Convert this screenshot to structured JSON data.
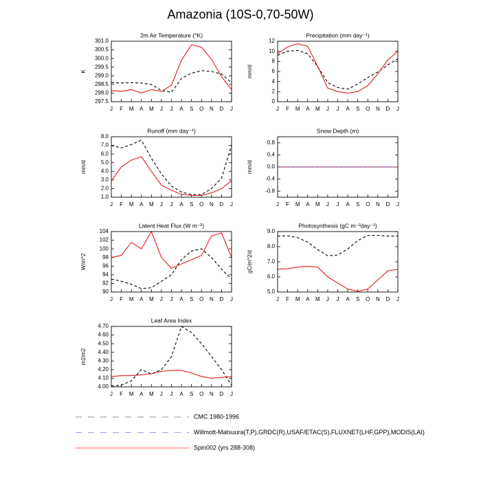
{
  "title": "Amazonia (10S-0,70-50W)",
  "legend": [
    {
      "label": "CMC 1980-1996",
      "color": "#8c8c8c",
      "dashed": true
    },
    {
      "label": "Willmott-Matsuura(T,P),GRDC(R),USAF/ETAC(S),FLUXNET(LHF,GPP),MODIS(LAI)",
      "color": "#9b9bf0",
      "dashed": true
    },
    {
      "label": "Spin002 (yrs 288-308)",
      "color": "#ff6060",
      "dashed": false
    }
  ],
  "chart_data": [
    {
      "type": "line",
      "title": "2m Air Temperature (°K)",
      "y_label": "K",
      "categories": [
        "J",
        "F",
        "M",
        "A",
        "M",
        "J",
        "J",
        "A",
        "S",
        "O",
        "N",
        "D",
        "J"
      ],
      "ylim": [
        297.5,
        301.0
      ],
      "yticks": [
        297.5,
        {
          "value": 298,
          "label": "298.0"
        },
        298.5,
        {
          "value": 299,
          "label": "299.0"
        },
        299.5,
        {
          "value": 300,
          "label": "300.0"
        },
        300.5,
        {
          "value": 301,
          "label": "301.0"
        }
      ],
      "series": [
        {
          "color": "#000000",
          "dashed": true,
          "values": [
            298.6,
            298.58,
            298.6,
            298.58,
            298.5,
            298.15,
            298.05,
            298.85,
            299.15,
            299.3,
            299.25,
            299.1,
            298.6
          ]
        },
        {
          "color": "#e41a1c",
          "dashed": false,
          "values": [
            298.15,
            298.1,
            298.2,
            298.0,
            298.2,
            298.1,
            298.45,
            299.9,
            300.8,
            300.65,
            299.95,
            298.95,
            298.2
          ]
        }
      ]
    },
    {
      "type": "line",
      "title": "Precipitation (mm day⁻¹)",
      "y_label": "mm/d",
      "categories": [
        "J",
        "F",
        "M",
        "A",
        "M",
        "J",
        "J",
        "A",
        "S",
        "O",
        "N",
        "D",
        "J"
      ],
      "ylim": [
        0,
        12
      ],
      "yticks": [
        0,
        2,
        4,
        6,
        8,
        10,
        12
      ],
      "series": [
        {
          "color": "#000000",
          "dashed": true,
          "values": [
            9.2,
            10.0,
            10.2,
            9.5,
            7.0,
            3.8,
            2.8,
            2.5,
            3.5,
            4.8,
            5.9,
            7.3,
            8.5
          ]
        },
        {
          "color": "#e41a1c",
          "dashed": false,
          "values": [
            9.5,
            10.9,
            11.5,
            11.0,
            7.0,
            2.7,
            2.0,
            1.7,
            2.0,
            3.2,
            5.5,
            8.3,
            10.0
          ]
        }
      ]
    },
    {
      "type": "line",
      "title": "Runoff (mm day⁻¹)",
      "y_label": "mm/d",
      "categories": [
        "J",
        "F",
        "M",
        "A",
        "M",
        "J",
        "J",
        "A",
        "S",
        "O",
        "N",
        "D",
        "J"
      ],
      "ylim": [
        1,
        8
      ],
      "yticks": [
        {
          "value": 1,
          "label": "1.0"
        },
        {
          "value": 2,
          "label": "2.0"
        },
        {
          "value": 3,
          "label": "3.0"
        },
        {
          "value": 4,
          "label": "4.0"
        },
        {
          "value": 5,
          "label": "5.0"
        },
        {
          "value": 6,
          "label": "6.0"
        },
        {
          "value": 7,
          "label": "7.0"
        },
        {
          "value": 8,
          "label": "8.0"
        }
      ],
      "series": [
        {
          "color": "#000000",
          "dashed": true,
          "values": [
            7.0,
            6.7,
            7.1,
            7.6,
            5.5,
            3.7,
            2.3,
            1.6,
            1.3,
            1.3,
            2.0,
            3.2,
            7.0
          ]
        },
        {
          "color": "#e41a1c",
          "dashed": false,
          "values": [
            2.9,
            4.5,
            5.3,
            5.7,
            4.0,
            2.4,
            1.8,
            1.35,
            1.2,
            1.2,
            1.5,
            2.0,
            2.9
          ]
        }
      ]
    },
    {
      "type": "line",
      "title": "Snow Depth (m)",
      "y_label": "mm/d",
      "categories": [
        "J",
        "F",
        "M",
        "A",
        "M",
        "J",
        "J",
        "A",
        "S",
        "O",
        "N",
        "D",
        "J"
      ],
      "ylim": [
        -1,
        1
      ],
      "yticks": [
        -0.8,
        -0.4,
        {
          "value": 0,
          "label": "0.0"
        },
        0.4,
        0.8
      ],
      "series": [
        {
          "color": "#e41a1c",
          "dashed": false,
          "values": [
            0,
            0,
            0,
            0,
            0,
            0,
            0,
            0,
            0,
            0,
            0,
            0,
            0
          ]
        },
        {
          "color": "#3030a0",
          "dashed": true,
          "values": [
            0,
            0,
            0,
            0,
            0,
            0,
            0,
            0,
            0,
            0,
            0,
            0,
            0
          ]
        }
      ]
    },
    {
      "type": "line",
      "title": "Latent Heat Flux (W m⁻²)",
      "y_label": "W/m^2",
      "categories": [
        "J",
        "F",
        "M",
        "A",
        "M",
        "J",
        "J",
        "A",
        "S",
        "O",
        "N",
        "D",
        "J"
      ],
      "ylim": [
        90,
        104
      ],
      "yticks": [
        90,
        92,
        94,
        96,
        98,
        100,
        102,
        104
      ],
      "series": [
        {
          "color": "#000000",
          "dashed": true,
          "values": [
            93,
            92.5,
            91.8,
            90.8,
            91.0,
            92.5,
            94,
            97.5,
            99.5,
            100,
            98,
            95.3,
            93
          ]
        },
        {
          "color": "#e41a1c",
          "dashed": false,
          "values": [
            98,
            98.5,
            101.5,
            100,
            104,
            98,
            95.5,
            96.5,
            97.5,
            98.5,
            103,
            103.7,
            98
          ]
        }
      ]
    },
    {
      "type": "line",
      "title": "Photosynthesis (gC m⁻²day⁻¹)",
      "y_label": "gC/m^2/d",
      "categories": [
        "J",
        "F",
        "M",
        "A",
        "M",
        "J",
        "J",
        "A",
        "S",
        "O",
        "N",
        "D",
        "J"
      ],
      "ylim": [
        5,
        9
      ],
      "yticks": [
        {
          "value": 5,
          "label": "5.0"
        },
        {
          "value": 6,
          "label": "6.0"
        },
        {
          "value": 7,
          "label": "7.0"
        },
        {
          "value": 8,
          "label": "8.0"
        },
        {
          "value": 9,
          "label": "9.0"
        }
      ],
      "series": [
        {
          "color": "#000000",
          "dashed": true,
          "values": [
            8.7,
            8.72,
            8.6,
            8.3,
            7.8,
            7.4,
            7.45,
            7.85,
            8.4,
            8.75,
            8.75,
            8.7,
            8.7
          ]
        },
        {
          "color": "#e41a1c",
          "dashed": false,
          "values": [
            6.5,
            6.55,
            6.65,
            6.7,
            6.65,
            6.0,
            5.6,
            5.2,
            5.05,
            5.2,
            5.8,
            6.4,
            6.5
          ]
        }
      ]
    },
    {
      "type": "line",
      "title": "Leaf Area Index",
      "y_label": "m2/m2",
      "categories": [
        "J",
        "F",
        "M",
        "A",
        "M",
        "J",
        "J",
        "A",
        "S",
        "O",
        "N",
        "D",
        "J"
      ],
      "ylim": [
        4,
        4.7
      ],
      "yticks": [
        {
          "value": 4,
          "label": "4.00"
        },
        {
          "value": 4.1,
          "label": "4.10"
        },
        {
          "value": 4.2,
          "label": "4.20"
        },
        {
          "value": 4.3,
          "label": "4.30"
        },
        {
          "value": 4.4,
          "label": "4.40"
        },
        {
          "value": 4.5,
          "label": "4.50"
        },
        {
          "value": 4.6,
          "label": "4.60"
        },
        {
          "value": 4.7,
          "label": "4.70"
        }
      ],
      "series": [
        {
          "color": "#000000",
          "dashed": true,
          "values": [
            4.01,
            4.02,
            4.07,
            4.2,
            4.15,
            4.2,
            4.35,
            4.7,
            4.63,
            4.5,
            4.35,
            4.2,
            4.02
          ]
        },
        {
          "color": "#e41a1c",
          "dashed": false,
          "values": [
            4.12,
            4.13,
            4.13,
            4.14,
            4.15,
            4.18,
            4.19,
            4.19,
            4.16,
            4.12,
            4.1,
            4.11,
            4.12
          ]
        }
      ]
    }
  ]
}
